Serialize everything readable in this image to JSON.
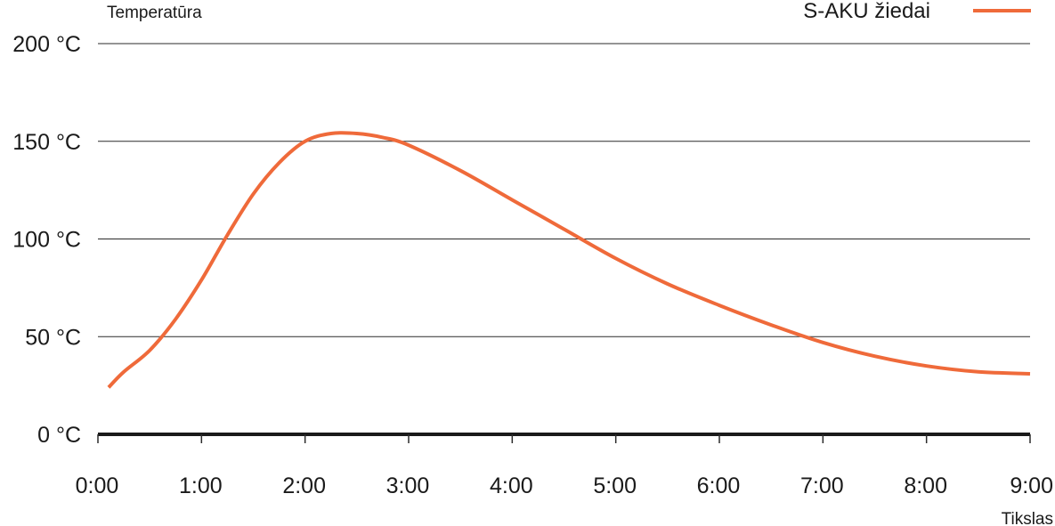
{
  "chart_data": {
    "type": "line",
    "title": "",
    "ylabel": "Temperatūra",
    "xlabel": "Tikslas",
    "ylim": [
      0,
      200
    ],
    "xlim": [
      0,
      9
    ],
    "y_ticks": [
      {
        "value": 0,
        "label": "0 °C"
      },
      {
        "value": 50,
        "label": "50 °C"
      },
      {
        "value": 100,
        "label": "100 °C"
      },
      {
        "value": 150,
        "label": "150 °C"
      },
      {
        "value": 200,
        "label": "200 °C"
      }
    ],
    "x_ticks": [
      {
        "value": 0,
        "label": "0:00"
      },
      {
        "value": 1,
        "label": "1:00"
      },
      {
        "value": 2,
        "label": "2:00"
      },
      {
        "value": 3,
        "label": "3:00"
      },
      {
        "value": 4,
        "label": "4:00"
      },
      {
        "value": 5,
        "label": "5:00"
      },
      {
        "value": 6,
        "label": "6:00"
      },
      {
        "value": 7,
        "label": "7:00"
      },
      {
        "value": 8,
        "label": "8:00"
      },
      {
        "value": 9,
        "label": "9:00"
      }
    ],
    "grid": true,
    "legend_position": "top-right",
    "series": [
      {
        "name": "S-AKU žiedai",
        "color": "#ef6a3a",
        "x": [
          0,
          0.25,
          0.5,
          0.75,
          1,
          1.25,
          1.5,
          1.75,
          2,
          2.25,
          2.5,
          2.75,
          3,
          3.5,
          4,
          4.5,
          5,
          5.5,
          6,
          6.5,
          7,
          7.5,
          8,
          8.5,
          9
        ],
        "y": [
          24,
          32,
          43,
          59,
          79,
          102,
          123,
          139,
          150,
          154,
          154,
          152,
          148,
          135,
          120,
          105,
          90,
          77,
          66,
          56,
          47,
          40,
          35,
          32,
          31
        ]
      }
    ]
  }
}
